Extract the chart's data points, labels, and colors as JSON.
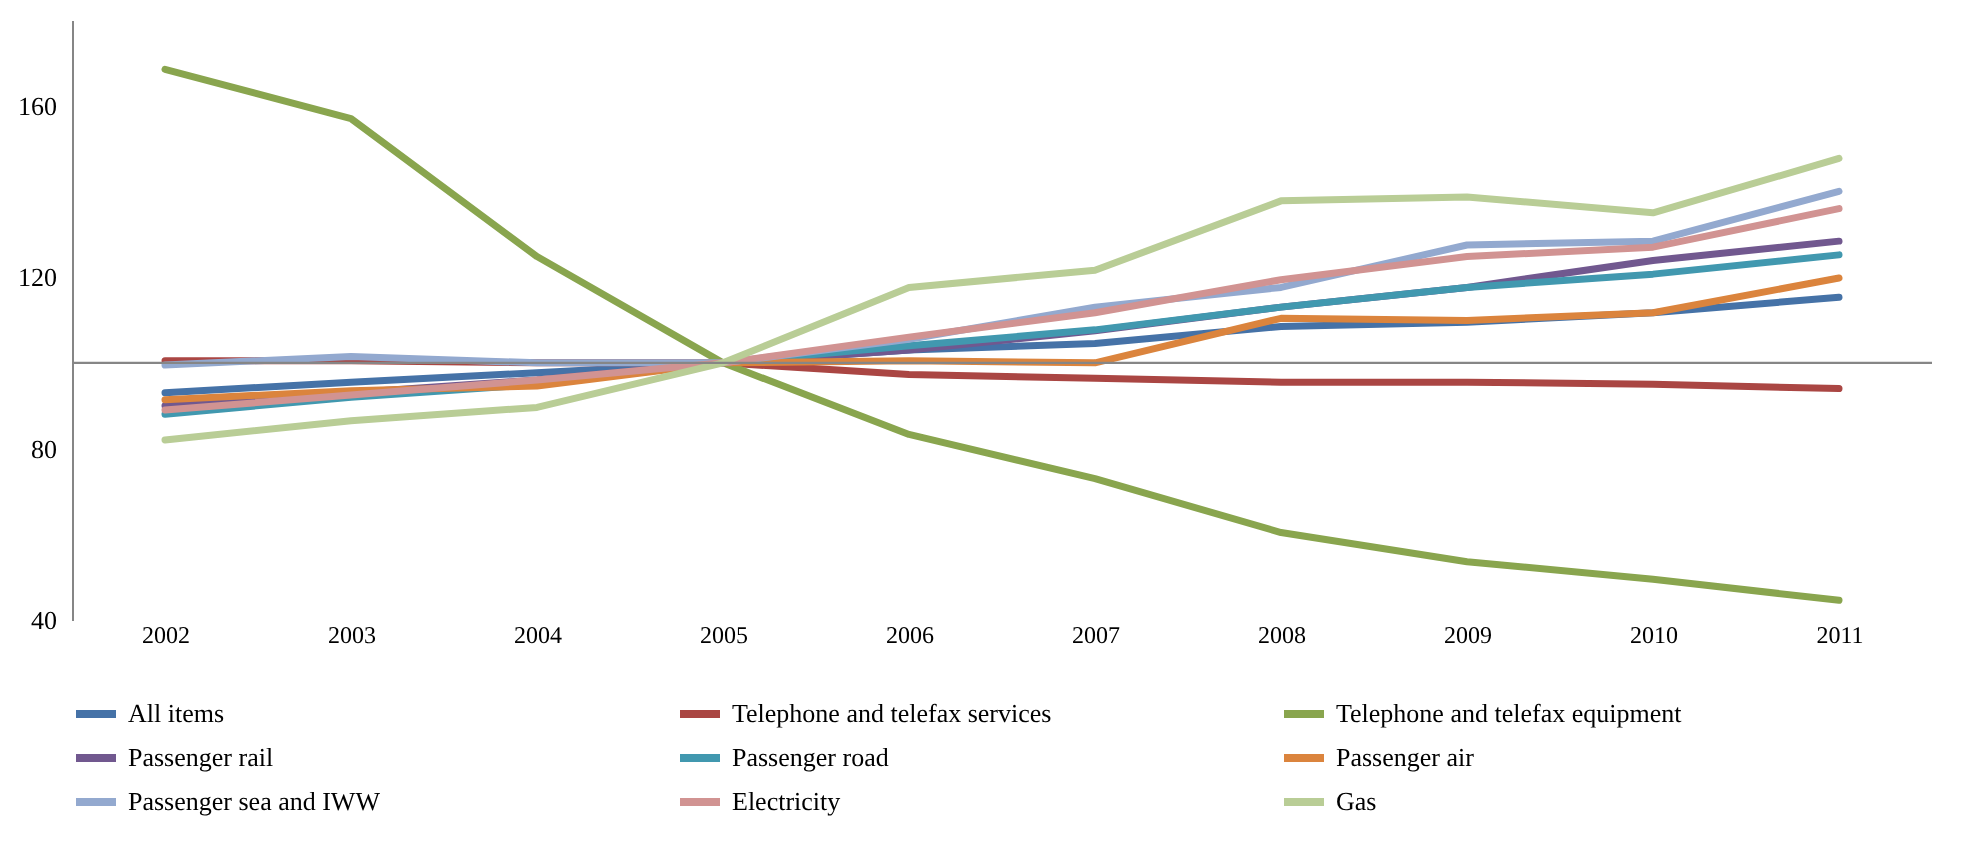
{
  "chart_data": {
    "type": "line",
    "categories": [
      "2002",
      "2003",
      "2004",
      "2005",
      "2006",
      "2007",
      "2008",
      "2009",
      "2010",
      "2011"
    ],
    "ylim": [
      40,
      180
    ],
    "yticks": [
      40,
      80,
      120,
      160
    ],
    "grid": false,
    "legend": "bottom",
    "ref_lines": [
      {
        "axis": "y",
        "value": 100,
        "color": "#868686"
      }
    ],
    "series": [
      {
        "name": "All items",
        "color": "#4572a7",
        "values": [
          93,
          95.5,
          97.7,
          100,
          103,
          104.5,
          108.5,
          109.5,
          111.7,
          115.3
        ]
      },
      {
        "name": "Telephone and telefax services",
        "color": "#aa4643",
        "values": [
          100.5,
          100.5,
          100,
          100,
          97.3,
          96.4,
          95.5,
          95.5,
          95,
          94
        ]
      },
      {
        "name": "Telephone and telefax equipment",
        "color": "#89a54e",
        "values": [
          168.5,
          157,
          124.8,
          100,
          83.3,
          73,
          60.4,
          53.6,
          49.5,
          44.6
        ]
      },
      {
        "name": "Passenger rail",
        "color": "#71588f",
        "values": [
          90,
          93,
          96,
          100,
          103,
          107.5,
          113,
          117.6,
          123.9,
          128.4
        ]
      },
      {
        "name": "Passenger road",
        "color": "#4198af",
        "values": [
          88,
          92,
          95,
          100,
          104,
          107.7,
          113,
          117.6,
          120.7,
          125.2
        ]
      },
      {
        "name": "Passenger air",
        "color": "#db843d",
        "values": [
          91.4,
          93.5,
          94.6,
          100,
          100.5,
          100,
          110.4,
          109.9,
          111.7,
          119.8
        ]
      },
      {
        "name": "Passenger sea and IWW",
        "color": "#93a9cf",
        "values": [
          99.5,
          101.5,
          100,
          100,
          105.5,
          113,
          117.6,
          127.5,
          128.4,
          140
        ]
      },
      {
        "name": "Electricity",
        "color": "#d19392",
        "values": [
          89,
          92.5,
          96,
          100,
          106,
          111.7,
          119.4,
          124.8,
          127,
          136
        ]
      },
      {
        "name": "Gas",
        "color": "#b9cd96",
        "values": [
          82,
          86.5,
          89.6,
          100,
          117.6,
          121.6,
          137.8,
          138.7,
          135,
          147.7
        ]
      }
    ]
  }
}
